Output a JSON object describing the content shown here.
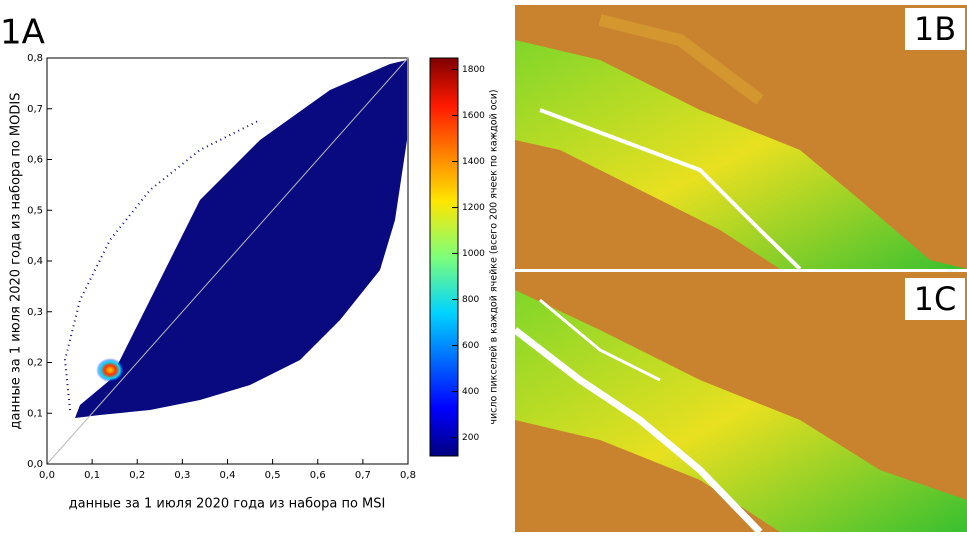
{
  "panel_labels": {
    "a": "1A",
    "b": "1B",
    "c": "1C"
  },
  "chart_data": {
    "type": "hist2d",
    "xlabel": "данные за 1 июля 2020 года из набора по MSI",
    "ylabel": "данные за 1 июля 2020 года из набора по MODIS",
    "xlim": [
      0,
      0.8
    ],
    "ylim": [
      0,
      0.8
    ],
    "xticks": [
      {
        "value": 0,
        "label": "0,0"
      },
      {
        "value": 0.1,
        "label": "0,1"
      },
      {
        "value": 0.2,
        "label": "0,2"
      },
      {
        "value": 0.3,
        "label": "0,3"
      },
      {
        "value": 0.4,
        "label": "0,4"
      },
      {
        "value": 0.5,
        "label": "0,5"
      },
      {
        "value": 0.6,
        "label": "0,6"
      },
      {
        "value": 0.7,
        "label": "0,7"
      },
      {
        "value": 0.8,
        "label": "0,8"
      }
    ],
    "yticks": [
      {
        "value": 0,
        "label": "0,0"
      },
      {
        "value": 0.1,
        "label": "0,1"
      },
      {
        "value": 0.2,
        "label": "0,2"
      },
      {
        "value": 0.3,
        "label": "0,3"
      },
      {
        "value": 0.4,
        "label": "0,4"
      },
      {
        "value": 0.5,
        "label": "0,5"
      },
      {
        "value": 0.6,
        "label": "0,6"
      },
      {
        "value": 0.7,
        "label": "0,7"
      },
      {
        "value": 0.8,
        "label": "0,8"
      }
    ],
    "peak": {
      "x": 0.14,
      "y": 0.185
    },
    "colorbar": {
      "label": "число пикселей в каждой ячейке (всего 200 ячеек по каждой оси)",
      "clim": [
        120,
        1850
      ],
      "ticks": [
        200,
        400,
        600,
        800,
        1000,
        1200,
        1400,
        1600,
        1800
      ]
    },
    "cloud_color": "#0a0a80"
  }
}
